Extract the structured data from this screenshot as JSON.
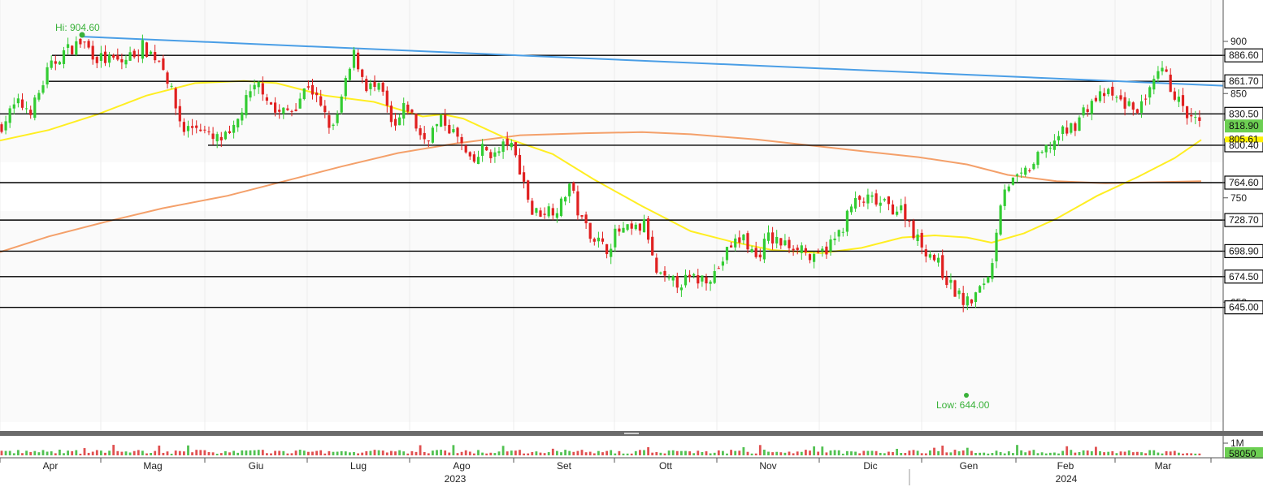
{
  "chart_data": {
    "type": "candlestick",
    "price_axis": {
      "ticks": [
        "900",
        "850",
        "750",
        "650"
      ],
      "range": [
        615,
        945
      ]
    },
    "volume_axis": {
      "tick": "1M",
      "last_volume": "58050"
    },
    "months": [
      {
        "label": "Apr"
      },
      {
        "label": "Mag"
      },
      {
        "label": "Giu"
      },
      {
        "label": "Lug"
      },
      {
        "label": "Ago"
      },
      {
        "label": "Set"
      },
      {
        "label": "Ott"
      },
      {
        "label": "Nov"
      },
      {
        "label": "Dic"
      },
      {
        "label": "Gen"
      },
      {
        "label": "Feb"
      },
      {
        "label": "Mar"
      }
    ],
    "years": [
      {
        "label": "2023"
      },
      {
        "label": "2024"
      }
    ],
    "horizontal_levels": [
      {
        "label": "886.60",
        "value": 886.6
      },
      {
        "label": "861.70",
        "value": 861.7
      },
      {
        "label": "830.50",
        "value": 830.5
      },
      {
        "label": "800.40",
        "value": 800.4
      },
      {
        "label": "764.60",
        "value": 764.6
      },
      {
        "label": "728.70",
        "value": 728.7
      },
      {
        "label": "698.90",
        "value": 698.9
      },
      {
        "label": "674.50",
        "value": 674.5
      },
      {
        "label": "645.00",
        "value": 645.0
      }
    ],
    "last_price": {
      "label": "818.90",
      "value": 818.9
    },
    "ma_short_last": {
      "label": "805.61",
      "value": 805.61
    },
    "high": {
      "text": "Hi: 904.60",
      "value": 904.6
    },
    "low": {
      "text": "Low: 644.00",
      "value": 644.0
    },
    "trendline": {
      "start": 904.6,
      "end": 857.5
    },
    "closes_stub": null
  },
  "colors": {
    "up": "#33cc33",
    "down": "#e02020",
    "ma_short": "#ffee22",
    "ma_long": "#f4a06a",
    "trendline": "#4a9ee6",
    "level_line": "#000000",
    "last_badge": "#6ccf52",
    "ma_badge": "#fff200",
    "annotation": "#39b139"
  }
}
